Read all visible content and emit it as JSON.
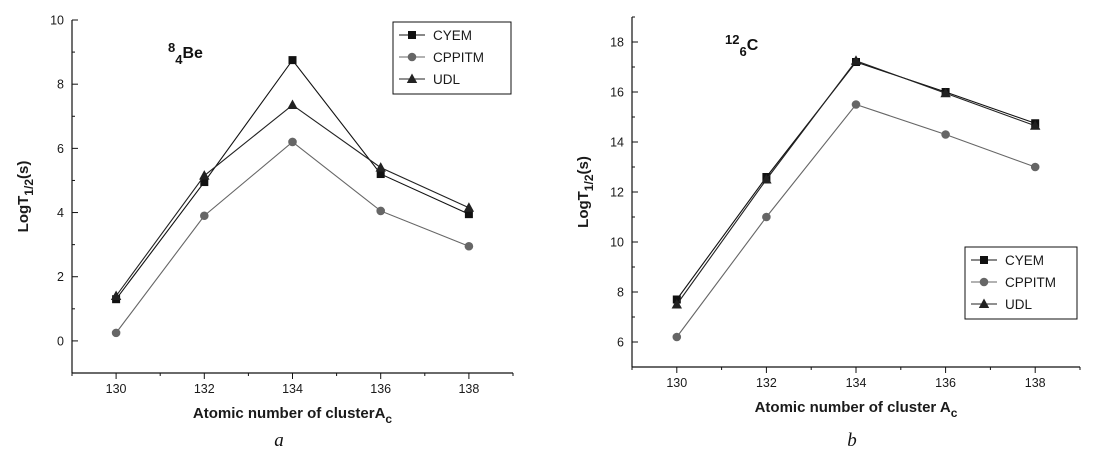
{
  "chart_data": [
    {
      "type": "line",
      "caption": "a",
      "nuclide": {
        "mass": "8",
        "charge": "4",
        "symbol": "Be"
      },
      "xlabel": {
        "main": "Atomic number of clusterA",
        "sub": "c"
      },
      "ylabel": {
        "main": "LogT",
        "sub": "1/2",
        "tail": "(s)"
      },
      "xlim": [
        129,
        139
      ],
      "ylim": [
        -1,
        10
      ],
      "xticks": [
        130,
        132,
        134,
        136,
        138
      ],
      "yticks": [
        0,
        2,
        4,
        6,
        8,
        10
      ],
      "x": [
        130,
        132,
        134,
        136,
        138
      ],
      "legend": "top-right",
      "series": [
        {
          "name": "CYEM",
          "marker": "square",
          "color": "#111111",
          "values": [
            1.3,
            4.95,
            8.75,
            5.2,
            3.95
          ]
        },
        {
          "name": "CPPITM",
          "marker": "circle",
          "color": "#666666",
          "values": [
            0.25,
            3.9,
            6.2,
            4.05,
            2.95
          ]
        },
        {
          "name": "UDL",
          "marker": "triangle",
          "color": "#222222",
          "values": [
            1.4,
            5.15,
            7.35,
            5.4,
            4.15
          ]
        }
      ]
    },
    {
      "type": "line",
      "caption": "b",
      "nuclide": {
        "mass": "12",
        "charge": "6",
        "symbol": "C"
      },
      "xlabel": {
        "main": "Atomic number of cluster A",
        "sub": "c"
      },
      "ylabel": {
        "main": "LogT",
        "sub": "1/2",
        "tail": "(s)"
      },
      "xlim": [
        129,
        139
      ],
      "ylim": [
        5,
        19
      ],
      "xticks": [
        130,
        132,
        134,
        136,
        138
      ],
      "yticks": [
        6,
        8,
        10,
        12,
        14,
        16,
        18
      ],
      "x": [
        130,
        132,
        134,
        136,
        138
      ],
      "legend": "bottom-right",
      "series": [
        {
          "name": "CYEM",
          "marker": "square",
          "color": "#111111",
          "values": [
            7.7,
            12.6,
            17.2,
            16.0,
            14.75
          ]
        },
        {
          "name": "CPPITM",
          "marker": "circle",
          "color": "#666666",
          "values": [
            6.2,
            11.0,
            15.5,
            14.3,
            13.0
          ]
        },
        {
          "name": "UDL",
          "marker": "triangle",
          "color": "#222222",
          "values": [
            7.5,
            12.5,
            17.25,
            15.95,
            14.65
          ]
        }
      ]
    }
  ]
}
